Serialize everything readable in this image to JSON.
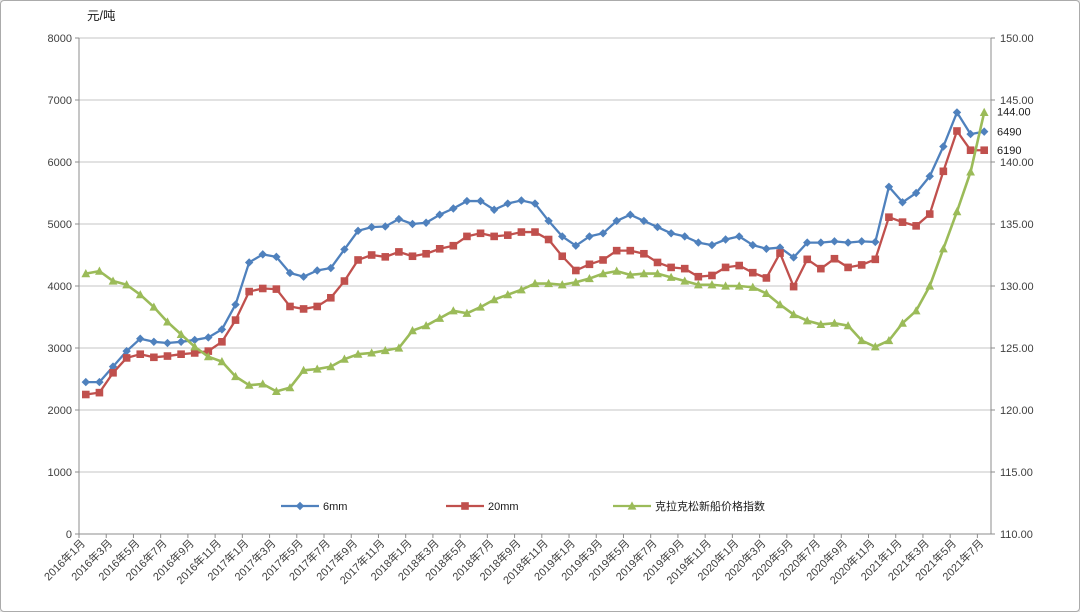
{
  "chart_data": {
    "type": "line",
    "title": "",
    "left_axis": {
      "title": "元/吨",
      "min": 0,
      "max": 8000,
      "step": 1000
    },
    "right_axis": {
      "min": 110,
      "max": 150,
      "step": 5
    },
    "x_label_every": 2,
    "x": [
      "2016年1月",
      "2016年2月",
      "2016年3月",
      "2016年4月",
      "2016年5月",
      "2016年6月",
      "2016年7月",
      "2016年8月",
      "2016年9月",
      "2016年10月",
      "2016年11月",
      "2016年12月",
      "2017年1月",
      "2017年2月",
      "2017年3月",
      "2017年4月",
      "2017年5月",
      "2017年6月",
      "2017年7月",
      "2017年8月",
      "2017年9月",
      "2017年10月",
      "2017年11月",
      "2017年12月",
      "2018年1月",
      "2018年2月",
      "2018年3月",
      "2018年4月",
      "2018年5月",
      "2018年6月",
      "2018年7月",
      "2018年8月",
      "2018年9月",
      "2018年10月",
      "2018年11月",
      "2018年12月",
      "2019年1月",
      "2019年2月",
      "2019年3月",
      "2019年4月",
      "2019年5月",
      "2019年6月",
      "2019年7月",
      "2019年8月",
      "2019年9月",
      "2019年10月",
      "2019年11月",
      "2019年12月",
      "2020年1月",
      "2020年2月",
      "2020年3月",
      "2020年4月",
      "2020年5月",
      "2020年6月",
      "2020年7月",
      "2020年8月",
      "2020年9月",
      "2020年10月",
      "2020年11月",
      "2020年12月",
      "2021年1月",
      "2021年2月",
      "2021年3月",
      "2021年4月",
      "2021年5月",
      "2021年6月",
      "2021年7月"
    ],
    "series": [
      {
        "name": "6mm",
        "color": "#4F81BD",
        "marker": "diamond",
        "axis": "left",
        "end_label": "6490",
        "values": [
          2450,
          2450,
          2700,
          2950,
          3150,
          3100,
          3080,
          3100,
          3130,
          3170,
          3300,
          3700,
          4380,
          4510,
          4470,
          4210,
          4150,
          4250,
          4290,
          4590,
          4890,
          4950,
          4960,
          5080,
          5000,
          5020,
          5150,
          5250,
          5370,
          5370,
          5230,
          5330,
          5380,
          5330,
          5050,
          4800,
          4650,
          4800,
          4850,
          5050,
          5150,
          5050,
          4950,
          4850,
          4800,
          4700,
          4660,
          4750,
          4800,
          4660,
          4600,
          4620,
          4460,
          4700,
          4700,
          4720,
          4700,
          4720,
          4710,
          5600,
          5350,
          5500,
          5770,
          6250,
          6800,
          6450,
          6490
        ]
      },
      {
        "name": "20mm",
        "color": "#C0504D",
        "marker": "square",
        "axis": "left",
        "end_label": "6190",
        "values": [
          2250,
          2280,
          2600,
          2840,
          2900,
          2850,
          2870,
          2900,
          2920,
          2950,
          3100,
          3450,
          3910,
          3960,
          3950,
          3670,
          3630,
          3670,
          3810,
          4080,
          4420,
          4500,
          4470,
          4550,
          4480,
          4520,
          4600,
          4650,
          4800,
          4850,
          4800,
          4820,
          4870,
          4870,
          4750,
          4480,
          4250,
          4350,
          4420,
          4570,
          4570,
          4520,
          4380,
          4300,
          4280,
          4150,
          4170,
          4300,
          4330,
          4215,
          4130,
          4530,
          3990,
          4430,
          4280,
          4440,
          4300,
          4340,
          4430,
          5110,
          5030,
          4970,
          5160,
          5850,
          6500,
          6190,
          6190
        ]
      },
      {
        "name": "克拉克松新船价格指数",
        "color": "#9BBB59",
        "marker": "triangle",
        "axis": "right",
        "end_label": "144.00",
        "values": [
          131.0,
          131.2,
          130.4,
          130.1,
          129.3,
          128.3,
          127.1,
          126.1,
          125.1,
          124.3,
          123.9,
          122.7,
          122.0,
          122.1,
          121.5,
          121.8,
          123.2,
          123.3,
          123.5,
          124.1,
          124.5,
          124.6,
          124.8,
          125.0,
          126.4,
          126.8,
          127.4,
          128.0,
          127.8,
          128.3,
          128.9,
          129.3,
          129.7,
          130.2,
          130.2,
          130.1,
          130.3,
          130.6,
          131.0,
          131.2,
          130.9,
          131.0,
          131.0,
          130.7,
          130.4,
          130.1,
          130.1,
          130.0,
          130.0,
          129.9,
          129.4,
          128.5,
          127.7,
          127.2,
          126.9,
          127.0,
          126.8,
          125.6,
          125.1,
          125.6,
          127.0,
          128.0,
          130.0,
          133.0,
          136.0,
          139.2,
          144.0
        ]
      }
    ],
    "legend_position": "bottom",
    "grid": true
  },
  "style": {
    "grid_color": "#C6C6C6",
    "axis_color": "#8C8C8C",
    "tick_label_color": "#3F3F3F",
    "end_label_color": "#1a1a1a"
  }
}
